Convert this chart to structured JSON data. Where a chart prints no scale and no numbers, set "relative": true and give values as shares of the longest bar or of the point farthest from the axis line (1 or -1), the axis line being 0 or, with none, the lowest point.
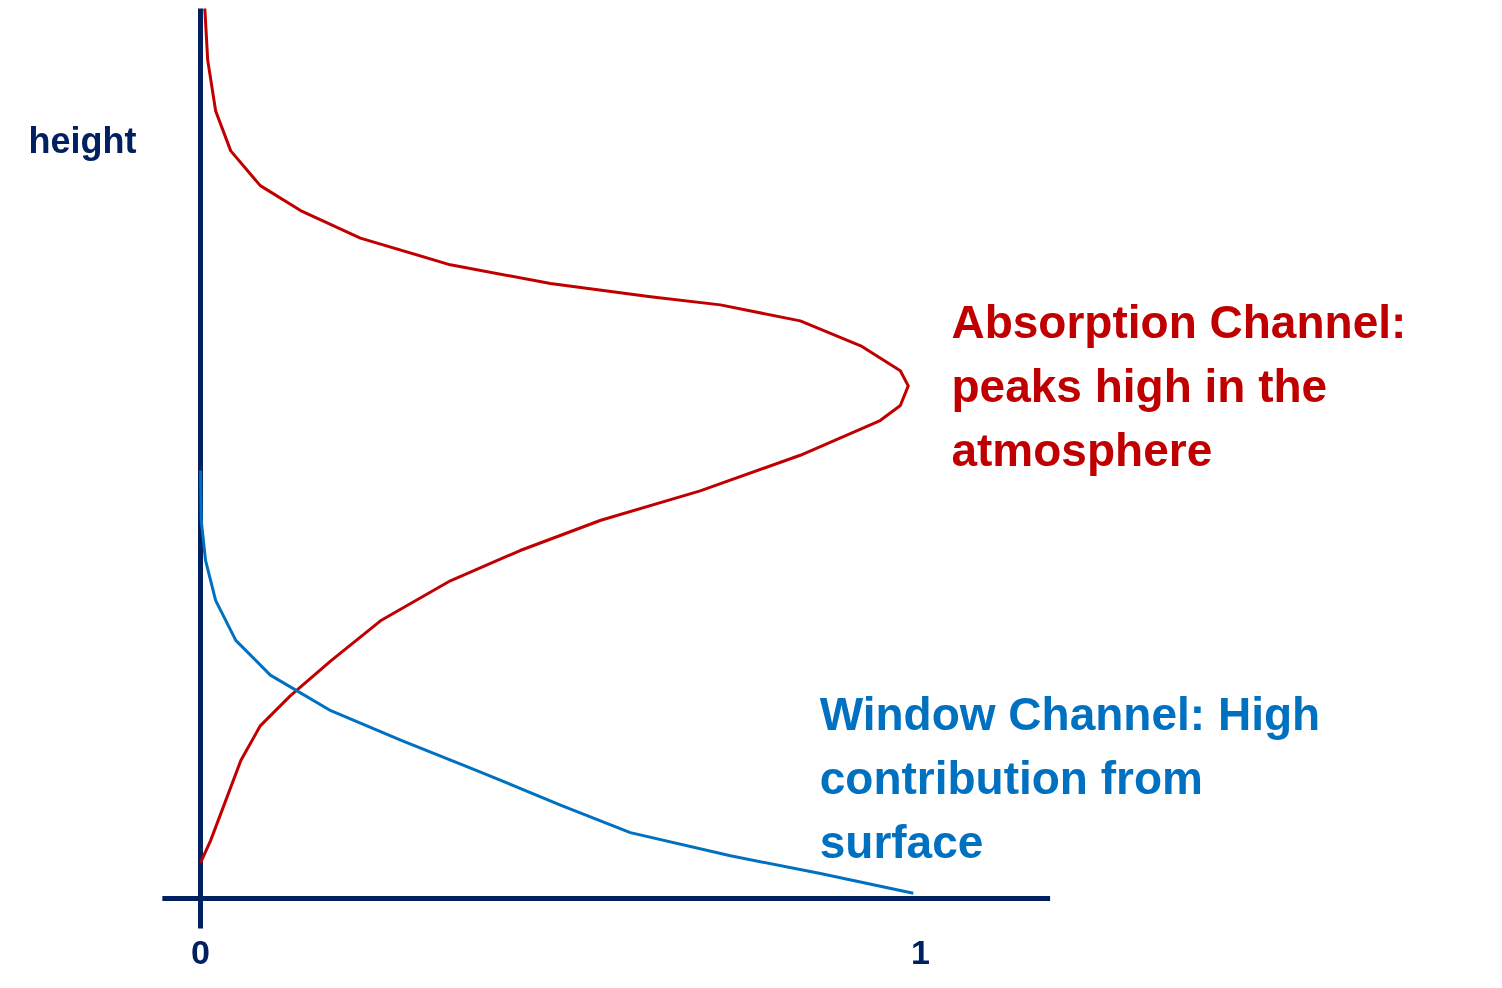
{
  "chart_data": {
    "type": "line",
    "relative": true,
    "ylabel": "height",
    "xlim": [
      -0.053,
      1.18
    ],
    "xticks": [
      0,
      1
    ],
    "grid": false,
    "marker": "none",
    "line_style": "solid",
    "series": [
      {
        "name": "Absorption Channel: peaks high in the atmosphere",
        "color": "#c00000",
        "x": [
          0.006,
          0.01,
          0.021,
          0.042,
          0.083,
          0.139,
          0.222,
          0.347,
          0.486,
          0.625,
          0.722,
          0.833,
          0.917,
          0.972,
          0.983,
          0.972,
          0.944,
          0.833,
          0.694,
          0.556,
          0.444,
          0.347,
          0.25,
          0.181,
          0.125,
          0.083,
          0.056,
          0.035,
          0.014,
          0
        ],
        "values": [
          1.0,
          0.942,
          0.885,
          0.84,
          0.801,
          0.773,
          0.742,
          0.712,
          0.691,
          0.676,
          0.667,
          0.649,
          0.621,
          0.593,
          0.576,
          0.554,
          0.537,
          0.498,
          0.458,
          0.425,
          0.391,
          0.357,
          0.312,
          0.267,
          0.228,
          0.194,
          0.155,
          0.11,
          0.065,
          0.04
        ]
      },
      {
        "name": "Window Channel: High contribution from surface",
        "color": "#0070c0",
        "x": [
          0,
          0.001,
          0.007,
          0.021,
          0.049,
          0.097,
          0.181,
          0.278,
          0.389,
          0.5,
          0.597,
          0.736,
          0.861,
          0.99
        ],
        "values": [
          0.481,
          0.425,
          0.38,
          0.335,
          0.29,
          0.251,
          0.211,
          0.178,
          0.142,
          0.105,
          0.074,
          0.048,
          0.028,
          0.006
        ]
      }
    ]
  }
}
